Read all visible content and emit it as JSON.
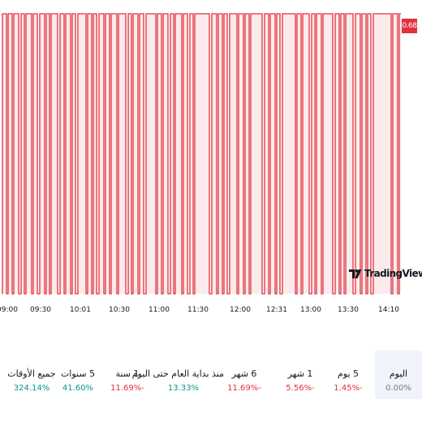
{
  "chart": {
    "current_price": "0.68",
    "logo_text": "TradingView",
    "line_color": "#e0313d",
    "fill_color": "#fadadd",
    "time_ticks": [
      "09:00",
      "09:30",
      "10:01",
      "10:30",
      "11:00",
      "11:30",
      "12:00",
      "12:31",
      "13:00",
      "13:30",
      "14:10"
    ]
  },
  "performance": [
    {
      "label": "اليوم",
      "value": "0.00%",
      "color": "#787b86",
      "active": true
    },
    {
      "label": "5 يوم",
      "value": "1.45%-",
      "color": "#e0313d",
      "active": false
    },
    {
      "label": "1 شهر",
      "value": "5.56%-",
      "color": "#e0313d",
      "active": false
    },
    {
      "label": "6 شهر",
      "value": "11.69%-",
      "color": "#e0313d",
      "active": false
    },
    {
      "label": "منذ بداية العام حتى اليوم",
      "value": "13.33%",
      "color": "#089981",
      "active": false
    },
    {
      "label": "1 سنة",
      "value": "11.69%-",
      "color": "#e0313d",
      "active": false
    },
    {
      "label": "5 سنوات",
      "value": "41.60%",
      "color": "#089981",
      "active": false
    },
    {
      "label": "جميع الأوقات",
      "value": "324.14%",
      "color": "#089981",
      "active": false
    }
  ]
}
